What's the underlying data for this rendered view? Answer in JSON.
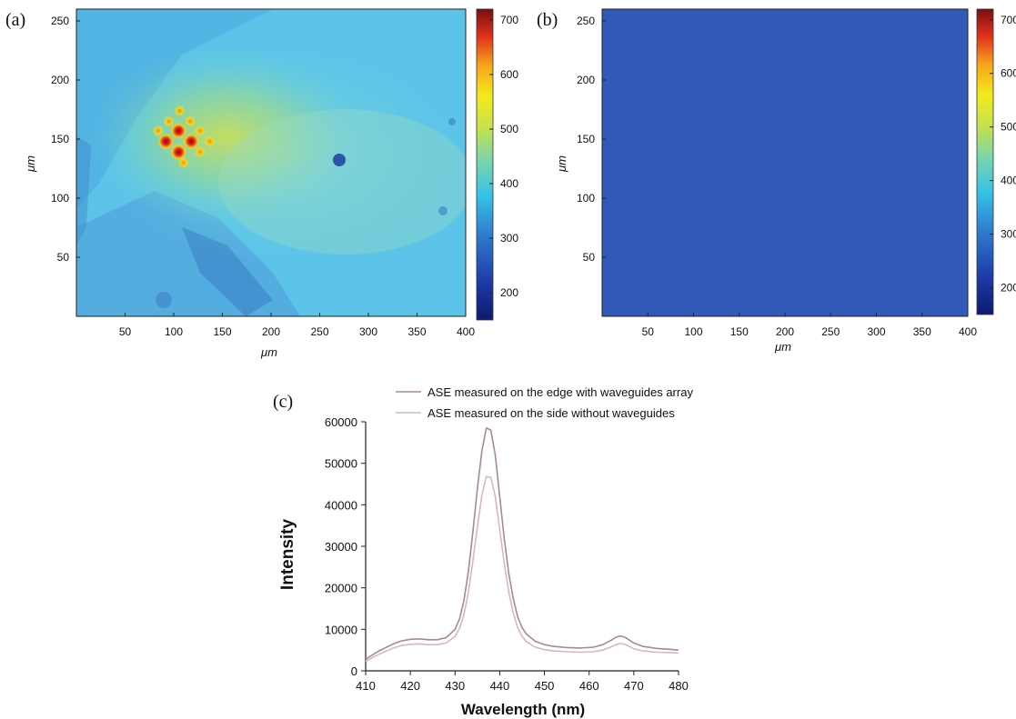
{
  "panels": {
    "a": {
      "label": "(a)"
    },
    "b": {
      "label": "(b)"
    },
    "c": {
      "label": "(c)"
    }
  },
  "chart_data": [
    {
      "type": "heatmap",
      "panel": "(a)",
      "xlabel": "μm",
      "ylabel": "μm",
      "xlim": [
        0,
        400
      ],
      "ylim": [
        0,
        260
      ],
      "x_ticks": [
        50,
        100,
        150,
        200,
        250,
        300,
        350,
        400
      ],
      "y_ticks": [
        50,
        100,
        150,
        200,
        250
      ],
      "colorbar": {
        "range": [
          150,
          720
        ],
        "ticks": [
          200,
          300,
          400,
          500,
          600,
          700
        ],
        "colormap": "jet"
      },
      "background_level": 330,
      "spots": [
        {
          "x": 105,
          "y": 157,
          "value": 720
        },
        {
          "x": 92,
          "y": 148,
          "value": 690
        },
        {
          "x": 118,
          "y": 148,
          "value": 680
        },
        {
          "x": 105,
          "y": 139,
          "value": 680
        },
        {
          "x": 95,
          "y": 165,
          "value": 560
        },
        {
          "x": 117,
          "y": 165,
          "value": 560
        },
        {
          "x": 127,
          "y": 157,
          "value": 540
        },
        {
          "x": 127,
          "y": 139,
          "value": 540
        },
        {
          "x": 110,
          "y": 130,
          "value": 520
        },
        {
          "x": 84,
          "y": 157,
          "value": 520
        },
        {
          "x": 106,
          "y": 174,
          "value": 520
        },
        {
          "x": 137,
          "y": 148,
          "value": 500
        }
      ]
    },
    {
      "type": "heatmap",
      "panel": "(b)",
      "xlabel": "μm",
      "ylabel": "μm",
      "xlim": [
        0,
        400
      ],
      "ylim": [
        0,
        260
      ],
      "x_ticks": [
        50,
        100,
        150,
        200,
        250,
        300,
        350,
        400
      ],
      "y_ticks": [
        50,
        100,
        150,
        200,
        250
      ],
      "colorbar": {
        "range": [
          150,
          720
        ],
        "ticks": [
          200,
          300,
          400,
          500,
          600,
          700
        ],
        "colormap": "jet"
      },
      "uniform_level": 240
    },
    {
      "type": "line",
      "panel": "(c)",
      "xlabel": "Wavelength (nm)",
      "ylabel": "Intensity",
      "xlim": [
        410,
        480
      ],
      "ylim": [
        0,
        60000
      ],
      "x_ticks": [
        410,
        420,
        430,
        440,
        450,
        460,
        470,
        480
      ],
      "y_ticks": [
        0,
        10000,
        20000,
        30000,
        40000,
        50000,
        60000
      ],
      "legend_position": "top",
      "x": [
        410,
        413,
        416,
        418,
        420,
        422,
        424,
        426,
        428,
        430,
        431,
        432,
        433,
        434,
        435,
        436,
        437,
        438,
        439,
        440,
        441,
        442,
        443,
        444,
        445,
        446,
        448,
        450,
        452,
        455,
        458,
        461,
        463,
        465,
        466,
        467,
        468,
        469,
        470,
        472,
        475,
        478,
        480
      ],
      "series": [
        {
          "name": "ASE measured on the edge with waveguides array",
          "color": "#a58b8e",
          "values": [
            2800,
            4800,
            6400,
            7200,
            7600,
            7700,
            7500,
            7500,
            8000,
            10000,
            12500,
            17000,
            24000,
            33500,
            44000,
            53000,
            58500,
            58000,
            52000,
            42000,
            32000,
            23500,
            17500,
            13000,
            10400,
            8800,
            7100,
            6300,
            5900,
            5600,
            5500,
            5700,
            6300,
            7400,
            8100,
            8400,
            8100,
            7400,
            6700,
            5900,
            5400,
            5200,
            5000
          ]
        },
        {
          "name": "ASE measured on the side without waveguides",
          "color": "#d7b7be",
          "values": [
            2300,
            4000,
            5400,
            6100,
            6400,
            6500,
            6300,
            6300,
            6700,
            8300,
            10200,
            13600,
            19000,
            26500,
            34800,
            42300,
            46800,
            46600,
            42000,
            34000,
            26000,
            19000,
            14000,
            10400,
            8300,
            7000,
            5700,
            5100,
            4800,
            4600,
            4500,
            4600,
            5000,
            5800,
            6300,
            6600,
            6400,
            5900,
            5300,
            4800,
            4500,
            4400,
            4300
          ]
        }
      ]
    }
  ]
}
